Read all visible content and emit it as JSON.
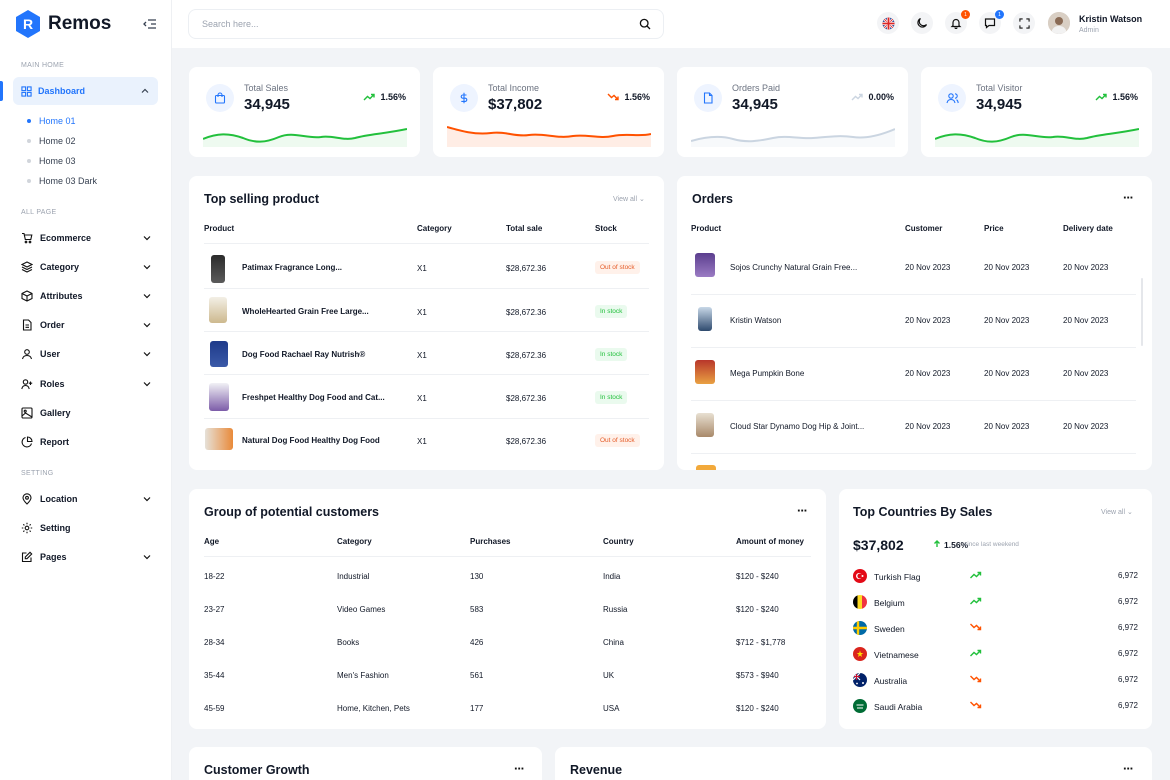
{
  "app": {
    "name": "Remos"
  },
  "sidebar": {
    "main_home_label": "MAIN HOME",
    "dashboard_label": "Dashboard",
    "home_items": [
      "Home 01",
      "Home 02",
      "Home 03",
      "Home 03 Dark"
    ],
    "all_page_label": "ALL PAGE",
    "all_page_items": [
      {
        "label": "Ecommerce",
        "icon": "cart-icon"
      },
      {
        "label": "Category",
        "icon": "layers-icon"
      },
      {
        "label": "Attributes",
        "icon": "box-icon"
      },
      {
        "label": "Order",
        "icon": "file-icon"
      },
      {
        "label": "User",
        "icon": "user-icon"
      },
      {
        "label": "Roles",
        "icon": "user-plus-icon"
      },
      {
        "label": "Gallery",
        "icon": "image-icon"
      },
      {
        "label": "Report",
        "icon": "pie-chart-icon"
      }
    ],
    "setting_label": "SETTING",
    "setting_items": [
      {
        "label": "Location",
        "icon": "map-pin-icon"
      },
      {
        "label": "Setting",
        "icon": "gear-icon"
      },
      {
        "label": "Pages",
        "icon": "edit-icon"
      }
    ]
  },
  "topbar": {
    "search_placeholder": "Search here...",
    "notification_count": "1",
    "message_count": "1",
    "user_name": "Kristin Watson",
    "user_role": "Admin"
  },
  "stats": [
    {
      "label": "Total Sales",
      "value": "34,945",
      "trend": "1.56%",
      "direction": "up",
      "color": "#22c03c"
    },
    {
      "label": "Total Income",
      "value": "$37,802",
      "trend": "1.56%",
      "direction": "down",
      "color": "#ff5200"
    },
    {
      "label": "Orders Paid",
      "value": "34,945",
      "trend": "0.00%",
      "direction": "flat",
      "color": "#cbd5e1"
    },
    {
      "label": "Total Visitor",
      "value": "34,945",
      "trend": "1.56%",
      "direction": "up",
      "color": "#22c03c"
    }
  ],
  "top_selling": {
    "title": "Top selling product",
    "view_all": "View all",
    "headers": [
      "Product",
      "Category",
      "Total sale",
      "Stock"
    ],
    "rows": [
      {
        "product": "Patimax Fragrance Long...",
        "category": "X1",
        "total": "$28,672.36",
        "stock": "Out of stock",
        "in_stock": false
      },
      {
        "product": "WholeHearted Grain Free Large...",
        "category": "X1",
        "total": "$28,672.36",
        "stock": "In stock",
        "in_stock": true
      },
      {
        "product": "Dog Food Rachael Ray Nutrish®",
        "category": "X1",
        "total": "$28,672.36",
        "stock": "In stock",
        "in_stock": true
      },
      {
        "product": "Freshpet Healthy Dog Food and Cat...",
        "category": "X1",
        "total": "$28,672.36",
        "stock": "In stock",
        "in_stock": true
      },
      {
        "product": "Natural Dog Food Healthy Dog Food",
        "category": "X1",
        "total": "$28,672.36",
        "stock": "Out of stock",
        "in_stock": false
      }
    ]
  },
  "orders": {
    "title": "Orders",
    "headers": [
      "Product",
      "Customer",
      "Price",
      "Delivery date"
    ],
    "rows": [
      {
        "product": "Sojos Crunchy Natural Grain Free...",
        "customer": "20 Nov 2023",
        "price": "20 Nov 2023",
        "delivery": "20 Nov 2023"
      },
      {
        "product": "Kristin Watson",
        "customer": "20 Nov 2023",
        "price": "20 Nov 2023",
        "delivery": "20 Nov 2023"
      },
      {
        "product": "Mega Pumpkin Bone",
        "customer": "20 Nov 2023",
        "price": "20 Nov 2023",
        "delivery": "20 Nov 2023"
      },
      {
        "product": "Cloud Star Dynamo Dog Hip & Joint...",
        "customer": "20 Nov 2023",
        "price": "20 Nov 2023",
        "delivery": "20 Nov 2023"
      }
    ]
  },
  "customers": {
    "title": "Group of potential customers",
    "headers": [
      "Age",
      "Category",
      "Purchases",
      "Country",
      "Amount of money"
    ],
    "rows": [
      [
        "18-22",
        "Industrial",
        "130",
        "India",
        "$120 - $240"
      ],
      [
        "23-27",
        "Video Games",
        "583",
        "Russia",
        "$120 - $240"
      ],
      [
        "28-34",
        "Books",
        "426",
        "China",
        "$712 - $1,778"
      ],
      [
        "35-44",
        "Men's Fashion",
        "561",
        "UK",
        "$573 - $940"
      ],
      [
        "45-59",
        "Home, Kitchen, Pets",
        "177",
        "USA",
        "$120 - $240"
      ]
    ]
  },
  "countries": {
    "title": "Top Countries By Sales",
    "view_all": "View all",
    "total": "$37,802",
    "trend": "1.56%",
    "trend_note": "since last weekend",
    "rows": [
      {
        "name": "Turkish Flag",
        "value": "6,972",
        "direction": "up"
      },
      {
        "name": "Belgium",
        "value": "6,972",
        "direction": "up"
      },
      {
        "name": "Sweden",
        "value": "6,972",
        "direction": "down"
      },
      {
        "name": "Vietnamese",
        "value": "6,972",
        "direction": "up"
      },
      {
        "name": "Australia",
        "value": "6,972",
        "direction": "down"
      },
      {
        "name": "Saudi Arabia",
        "value": "6,972",
        "direction": "down"
      }
    ]
  },
  "bottom": {
    "customer_growth": "Customer Growth",
    "revenue": "Revenue"
  }
}
